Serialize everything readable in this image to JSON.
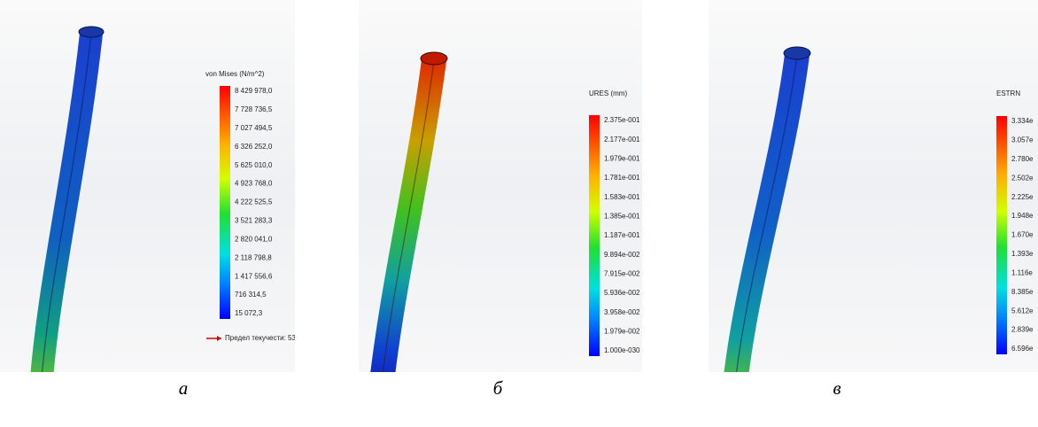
{
  "panels": [
    {
      "legend": {
        "title": "von Mises (N/m^2)",
        "labels": [
          "8 429 978,0",
          "7 728 736,5",
          "7 027 494,5",
          "6 326 252,0",
          "5 625 010,0",
          "4 923 768,0",
          "4 222 525,5",
          "3 521 283,3",
          "2 820 041,0",
          "2 118 798,8",
          "1 417 556,6",
          "716 314,5",
          "15 072,3"
        ]
      },
      "note": "Предел текучести: 53",
      "caption": "а"
    },
    {
      "legend": {
        "title": "URES (mm)",
        "labels": [
          "2.375e-001",
          "2.177e-001",
          "1.979e-001",
          "1.781e-001",
          "1.583e-001",
          "1.385e-001",
          "1.187e-001",
          "9.894e-002",
          "7.915e-002",
          "5.936e-002",
          "3.958e-002",
          "1.979e-002",
          "1.000e-030"
        ]
      },
      "caption": "б"
    },
    {
      "legend": {
        "title": "ESTRN",
        "labels": [
          "3.334e",
          "3.057e",
          "2.780e",
          "2.502e",
          "2.225e",
          "1.948e",
          "1.670e",
          "1.393e",
          "1.116e",
          "8.385e",
          "5.612e",
          "2.839e",
          "6.596e"
        ]
      },
      "caption": "в"
    }
  ]
}
